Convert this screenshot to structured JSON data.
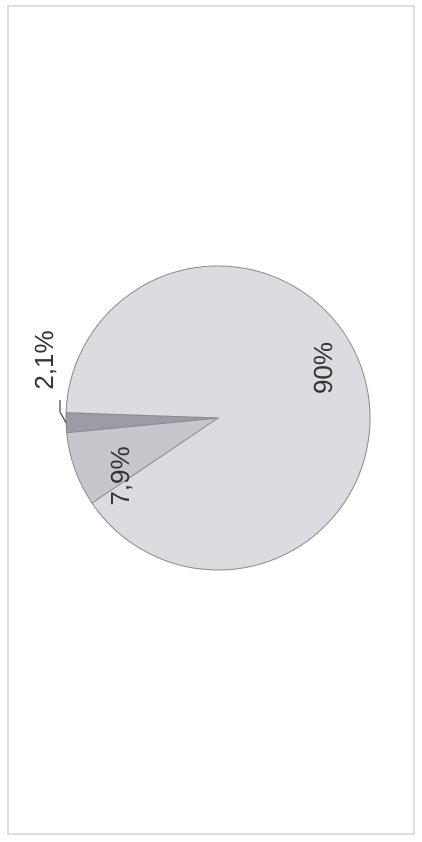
{
  "chart_data": {
    "type": "pie",
    "values": [
      90,
      7.9,
      2.1
    ],
    "value_labels": [
      "90%",
      "7,9%",
      "2,1%"
    ],
    "colors": [
      "#dcdce0",
      "#c6c6cc",
      "#9c9ca6"
    ]
  }
}
